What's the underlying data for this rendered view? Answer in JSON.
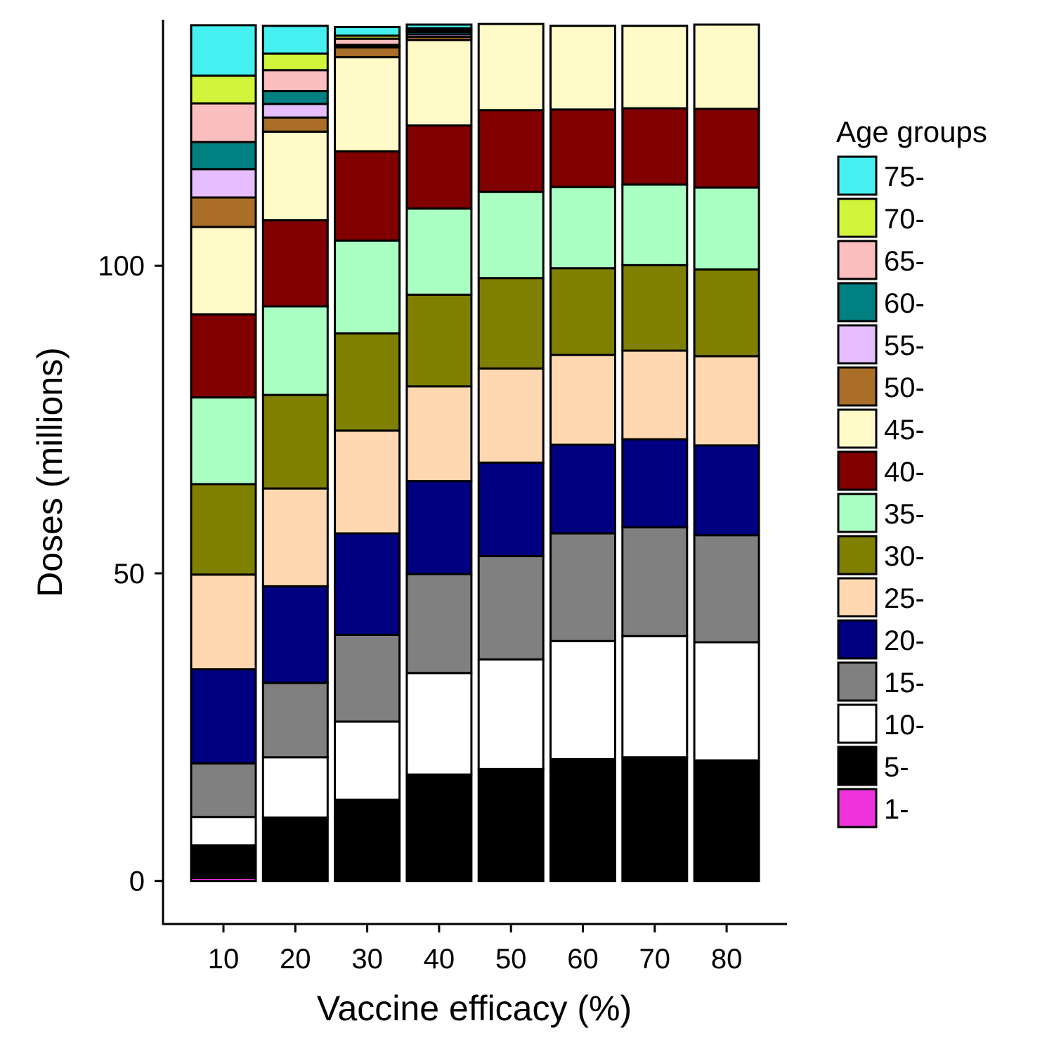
{
  "chart_data": {
    "type": "bar",
    "stacked": true,
    "xlabel": "Vaccine efficacy (%)",
    "ylabel": "Doses (millions)",
    "categories": [
      "10",
      "20",
      "30",
      "40",
      "50",
      "60",
      "70",
      "80"
    ],
    "ylim": [
      -7,
      140
    ],
    "yticks": [
      "0",
      "50",
      "100"
    ],
    "legend": {
      "title": "Age groups",
      "placement": "right"
    },
    "series": [
      {
        "name": "1-",
        "color": "#ee33dd",
        "values": [
          0.5,
          0,
          0,
          0,
          0,
          0,
          0,
          0
        ]
      },
      {
        "name": "5-",
        "color": "#000000",
        "values": [
          5.3,
          10.3,
          13.2,
          17.3,
          18.2,
          19.8,
          20.1,
          19.6
        ]
      },
      {
        "name": "10-",
        "color": "#ffffff",
        "values": [
          4.6,
          9.8,
          12.7,
          16.5,
          17.8,
          19.2,
          19.7,
          19.2
        ]
      },
      {
        "name": "15-",
        "color": "#808080",
        "values": [
          8.7,
          12.1,
          14.1,
          16.1,
          16.8,
          17.5,
          17.7,
          17.4
        ]
      },
      {
        "name": "20-",
        "color": "#000080",
        "values": [
          15.3,
          15.7,
          16.5,
          15.1,
          15.2,
          14.4,
          14.3,
          14.6
        ]
      },
      {
        "name": "25-",
        "color": "#ffd8b1",
        "values": [
          15.4,
          15.9,
          16.7,
          15.4,
          15.3,
          14.6,
          14.4,
          14.5
        ]
      },
      {
        "name": "30-",
        "color": "#808000",
        "values": [
          14.7,
          15.2,
          15.8,
          14.9,
          14.7,
          14.1,
          13.9,
          14.1
        ]
      },
      {
        "name": "35-",
        "color": "#aaffc3",
        "values": [
          14.1,
          14.4,
          15.1,
          14.0,
          14.0,
          13.2,
          13.1,
          13.3
        ]
      },
      {
        "name": "40-",
        "color": "#800000",
        "values": [
          13.5,
          14.0,
          14.5,
          13.5,
          13.3,
          12.6,
          12.4,
          12.8
        ]
      },
      {
        "name": "45-",
        "color": "#fffac8",
        "values": [
          14.2,
          14.4,
          15.3,
          13.9,
          14.0,
          13.6,
          13.4,
          13.7
        ]
      },
      {
        "name": "50-",
        "color": "#aa6e28",
        "values": [
          4.8,
          2.3,
          1.6,
          0.5,
          0,
          0,
          0,
          0
        ]
      },
      {
        "name": "55-",
        "color": "#e6beff",
        "values": [
          4.6,
          2.2,
          0.2,
          0.4,
          0,
          0,
          0,
          0
        ]
      },
      {
        "name": "60-",
        "color": "#008080",
        "values": [
          4.4,
          2.1,
          0.2,
          0.4,
          0,
          0,
          0,
          0
        ]
      },
      {
        "name": "65-",
        "color": "#fabebe",
        "values": [
          6.3,
          3.4,
          1.0,
          0.3,
          0,
          0,
          0,
          0
        ]
      },
      {
        "name": "70-",
        "color": "#d2f53c",
        "values": [
          4.5,
          2.7,
          0.5,
          0.3,
          0,
          0,
          0,
          0
        ]
      },
      {
        "name": "75-",
        "color": "#46f0f0",
        "values": [
          8.2,
          4.5,
          1.4,
          0.6,
          0,
          0,
          0,
          0
        ]
      }
    ]
  }
}
